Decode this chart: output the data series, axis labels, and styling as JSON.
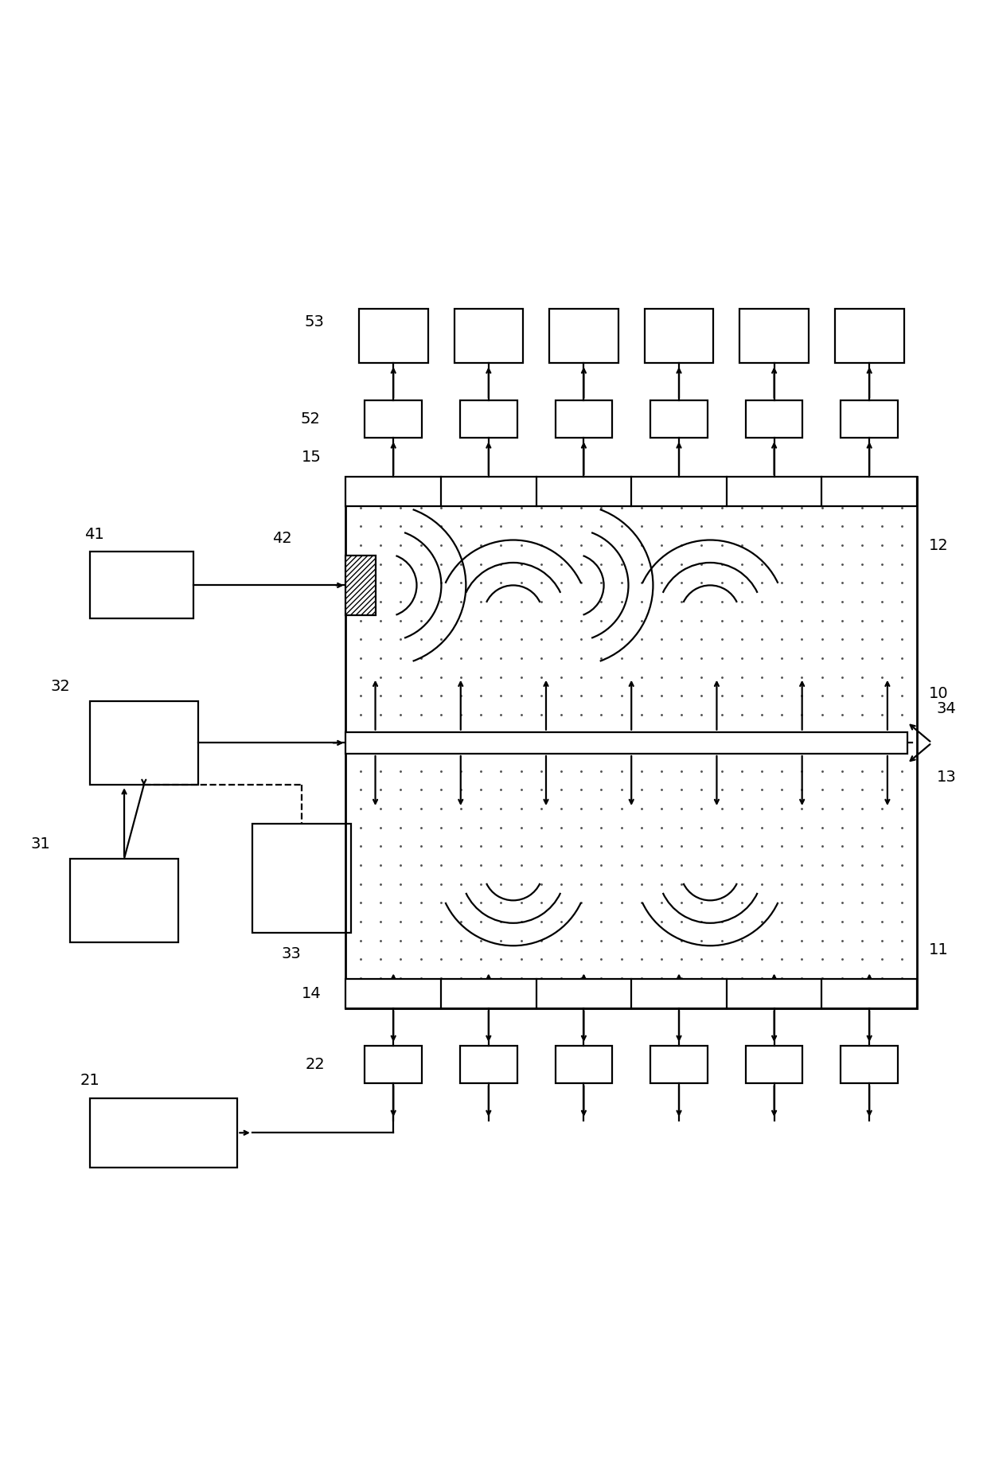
{
  "bg_color": "#ffffff",
  "figsize": [
    12.4,
    18.42
  ],
  "dpi": 100,
  "lw": 1.6,
  "lw_thick": 2.0,
  "bx0": 0.35,
  "bx1": 0.93,
  "by0": 0.22,
  "by1": 0.76,
  "n_cols": 6,
  "dot_color": "#555555",
  "dot_nx": 28,
  "dot_ny": 28
}
